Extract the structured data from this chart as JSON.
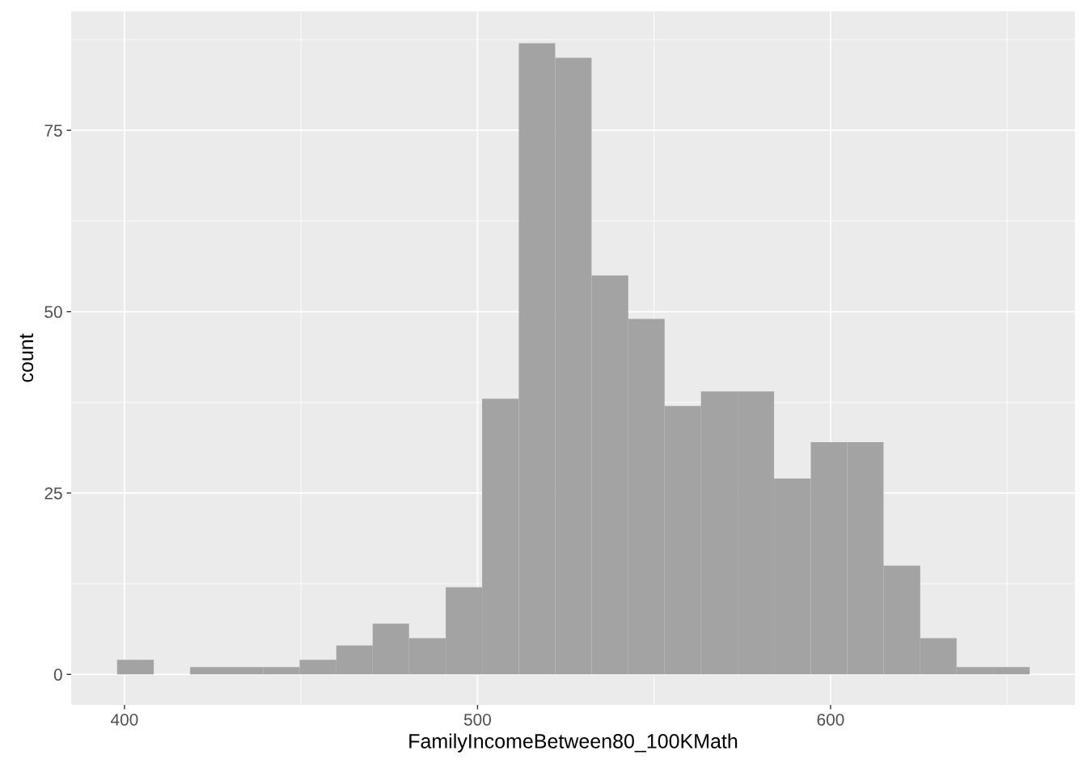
{
  "chart_data": {
    "type": "histogram",
    "xlabel": "FamilyIncomeBetween80_100KMath",
    "ylabel": "count",
    "bins": [
      397.9,
      408.3,
      418.6,
      428.9,
      439.3,
      449.6,
      460.0,
      470.3,
      480.6,
      491.0,
      501.3,
      511.7,
      522.0,
      532.3,
      542.7,
      553.0,
      563.3,
      573.7,
      584.0,
      594.4,
      604.7,
      615.0,
      625.4,
      635.7,
      646.1,
      656.4
    ],
    "values": [
      2,
      0,
      1,
      1,
      1,
      2,
      4,
      7,
      5,
      12,
      38,
      87,
      85,
      55,
      49,
      37,
      39,
      39,
      27,
      32,
      32,
      15,
      5,
      1,
      1
    ],
    "color": "#a3a3a3",
    "xlim": [
      384.9,
      669.2
    ],
    "ylim": [
      -4.2,
      91.4
    ],
    "xticks": [
      400,
      500,
      600
    ],
    "yticks": [
      0,
      25,
      50,
      75
    ],
    "grid": true
  }
}
